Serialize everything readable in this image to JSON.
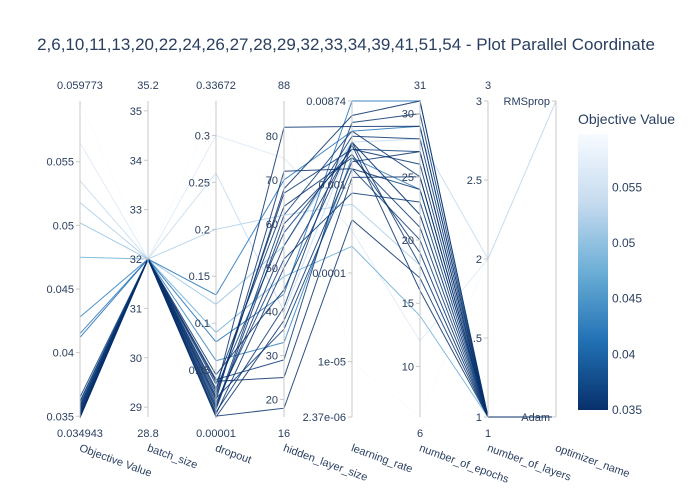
{
  "chart_data": {
    "type": "parallel_coordinates",
    "title": "2,6,10,11,13,20,22,24,26,27,28,29,32,33,34,39,41,51,54 - Plot Parallel Coordinate",
    "colorbar": {
      "title": "Objective Value",
      "min": 0.035,
      "max": 0.0598,
      "ticks": [
        "0.055",
        "0.05",
        "0.045",
        "0.04",
        "0.035"
      ],
      "colors": [
        "#08306b",
        "#2171b5",
        "#6baed6",
        "#c6dbef",
        "#f7fbff"
      ]
    },
    "axes": [
      {
        "key": "obj",
        "label": "Objective Value",
        "type": "linear",
        "min": 0.034943,
        "max": 0.059773,
        "range_top": "0.059773",
        "range_bottom": "0.034943",
        "ticks": [
          [
            0.035,
            "0.035"
          ],
          [
            0.04,
            "0.04"
          ],
          [
            0.045,
            "0.045"
          ],
          [
            0.05,
            "0.05"
          ],
          [
            0.055,
            "0.055"
          ]
        ]
      },
      {
        "key": "batch",
        "label": "batch_size",
        "type": "linear",
        "min": 28.8,
        "max": 35.2,
        "range_top": "35.2",
        "range_bottom": "28.8",
        "ticks": [
          [
            29,
            "29"
          ],
          [
            30,
            "30"
          ],
          [
            31,
            "31"
          ],
          [
            32,
            "32"
          ],
          [
            33,
            "33"
          ],
          [
            34,
            "34"
          ],
          [
            35,
            "35"
          ]
        ]
      },
      {
        "key": "dropout",
        "label": "dropout",
        "type": "linear",
        "min": 1e-05,
        "max": 0.33672,
        "range_top": "0.33672",
        "range_bottom": "0.00001",
        "ticks": [
          [
            0.05,
            "0.05"
          ],
          [
            0.1,
            "0.1"
          ],
          [
            0.15,
            "0.15"
          ],
          [
            0.2,
            "0.2"
          ],
          [
            0.25,
            "0.25"
          ],
          [
            0.3,
            "0.3"
          ]
        ]
      },
      {
        "key": "hidden",
        "label": "hidden_layer_size",
        "type": "linear",
        "min": 16,
        "max": 88,
        "range_top": "88",
        "range_bottom": "16",
        "ticks": [
          [
            20,
            "20"
          ],
          [
            30,
            "30"
          ],
          [
            40,
            "40"
          ],
          [
            50,
            "50"
          ],
          [
            60,
            "60"
          ],
          [
            70,
            "70"
          ],
          [
            80,
            "80"
          ]
        ]
      },
      {
        "key": "lr",
        "label": "learning_rate",
        "type": "log",
        "min": 2.37e-06,
        "max": 0.00874,
        "range_top": "",
        "range_bottom": "",
        "ticks": [
          [
            2.37e-06,
            "2.37e-06"
          ],
          [
            1e-05,
            "1e-05"
          ],
          [
            0.0001,
            "0.0001"
          ],
          [
            0.001,
            "0.001"
          ],
          [
            0.00874,
            "0.00874"
          ]
        ]
      },
      {
        "key": "epochs",
        "label": "number_of_epochs",
        "type": "linear",
        "min": 6,
        "max": 31,
        "range_top": "31",
        "range_bottom": "6",
        "ticks": [
          [
            10,
            "10"
          ],
          [
            15,
            "15"
          ],
          [
            20,
            "20"
          ],
          [
            25,
            "25"
          ],
          [
            30,
            "30"
          ]
        ]
      },
      {
        "key": "layers",
        "label": "number_of_layers",
        "type": "linear",
        "min": 1,
        "max": 3,
        "range_top": "3",
        "range_bottom": "1",
        "ticks": [
          [
            1,
            "1"
          ],
          [
            1.5,
            "1.5"
          ],
          [
            2,
            "2"
          ],
          [
            2.5,
            "2.5"
          ],
          [
            3,
            "3"
          ]
        ]
      },
      {
        "key": "opt",
        "label": "optimizer_name",
        "type": "category",
        "min": 0,
        "max": 1,
        "range_top": "",
        "range_bottom": "",
        "ticks": [
          [
            0,
            "Adam"
          ],
          [
            1,
            "RMSprop"
          ]
        ]
      }
    ],
    "trials": [
      [
        0.059773,
        32,
        0.33672,
        88,
        1e-05,
        6,
        2,
        1
      ],
      [
        0.0565,
        32,
        0.3,
        75,
        0.0003,
        12,
        2,
        1
      ],
      [
        0.0535,
        32,
        0.26,
        40,
        0.003,
        28,
        2,
        1
      ],
      [
        0.0518,
        32,
        0.2,
        62,
        0.0006,
        18,
        1,
        0
      ],
      [
        0.0502,
        32,
        0.12,
        55,
        0.003,
        22,
        1,
        0
      ],
      [
        0.0475,
        32,
        0.09,
        48,
        0.0002,
        14,
        1,
        0
      ],
      [
        0.0428,
        32,
        0.06,
        33,
        0.002,
        24,
        1,
        0
      ],
      [
        0.0415,
        32,
        0.13,
        70,
        0.004,
        29,
        1,
        0
      ],
      [
        0.0412,
        32,
        0.08,
        44,
        0.00874,
        31,
        1,
        0
      ],
      [
        0.0365,
        32,
        0.03,
        58,
        0.0025,
        27,
        1,
        0
      ],
      [
        0.0362,
        32,
        0.02,
        36,
        0.0015,
        20,
        1,
        0
      ],
      [
        0.0361,
        32,
        0.01,
        62,
        0.004,
        25,
        1,
        0
      ],
      [
        0.0359,
        32,
        0.04,
        29,
        0.003,
        18,
        1,
        0
      ],
      [
        0.0358,
        32,
        0.015,
        52,
        0.0008,
        23,
        1,
        0
      ],
      [
        0.0357,
        32,
        0.025,
        67,
        0.0025,
        26,
        1,
        0
      ],
      [
        0.0356,
        32,
        0.005,
        41,
        0.005,
        30,
        1,
        0
      ],
      [
        0.0355,
        32,
        0.035,
        64,
        0.002,
        21,
        1,
        0
      ],
      [
        0.0354,
        32,
        0.012,
        55,
        0.0035,
        28,
        1,
        0
      ],
      [
        0.0353,
        32,
        0.001,
        18,
        0.0004,
        17,
        1,
        0
      ],
      [
        0.0352,
        32,
        0.018,
        72,
        0.0015,
        24,
        1,
        0
      ],
      [
        0.0351,
        32,
        0.045,
        45,
        0.003,
        22,
        1,
        0
      ],
      [
        0.0351,
        32,
        0.028,
        82,
        0.0045,
        29,
        1,
        0
      ],
      [
        0.035,
        32,
        0.008,
        60,
        0.0022,
        19,
        1,
        0
      ],
      [
        0.035,
        32,
        0.038,
        25,
        0.0012,
        25,
        1,
        0
      ],
      [
        0.0349,
        32,
        0.022,
        68,
        0.006,
        31,
        1,
        0
      ],
      [
        0.0349,
        32,
        0.003,
        50,
        0.0028,
        16,
        1,
        0
      ],
      [
        0.034943,
        32,
        1e-05,
        38,
        0.0018,
        27,
        1,
        0
      ]
    ]
  }
}
